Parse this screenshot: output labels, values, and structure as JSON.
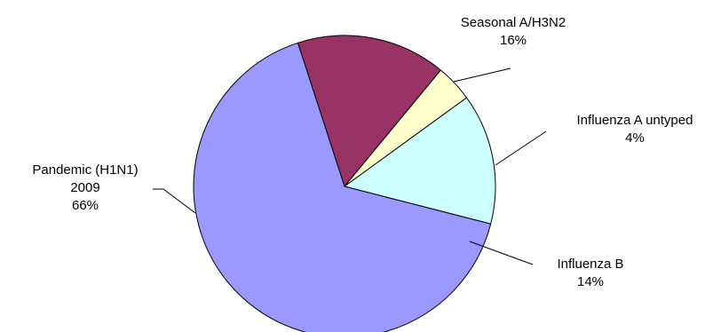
{
  "chart_data": {
    "type": "pie",
    "title": "",
    "start_angle_deg": 342,
    "direction": "clockwise",
    "slices": [
      {
        "lines": [
          "Seasonal A/H3N2",
          "16%"
        ],
        "value": 16,
        "color": "#993366"
      },
      {
        "lines": [
          "Influenza A untyped",
          "4%"
        ],
        "value": 4,
        "color": "#ffffcc"
      },
      {
        "lines": [
          "Influenza B",
          "14%"
        ],
        "value": 14,
        "color": "#ccffff"
      },
      {
        "lines": [
          "Pandemic (H1N1)",
          "2009",
          "66%"
        ],
        "value": 66,
        "color": "#9999ff"
      }
    ]
  }
}
